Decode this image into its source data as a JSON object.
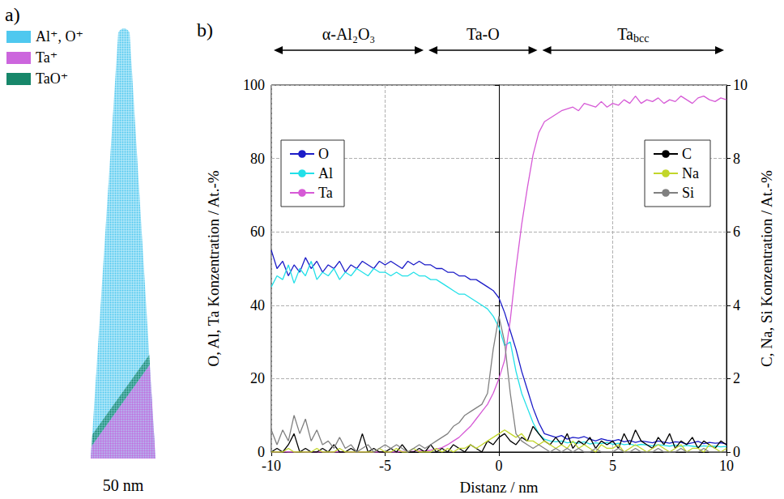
{
  "panel_a": {
    "title": "a)",
    "legend": [
      {
        "label": "Al⁺, O⁺",
        "color": "#4fc8ef"
      },
      {
        "label": "Ta⁺",
        "color": "#cc66dd"
      },
      {
        "label": "TaO⁺",
        "color": "#17876a"
      }
    ],
    "scale_bar": "50 nm"
  },
  "chart_data": {
    "type": "line",
    "title": "b)",
    "x_label": "Distanz / nm",
    "y_label": "O, Al, Ta Konzentration / At.-%",
    "y2_label": "C, Na, Si Konzentration / At.-%",
    "xlim": [
      -10,
      10
    ],
    "xticks": [
      -10,
      -5,
      0,
      5,
      10
    ],
    "ylim": [
      0,
      100
    ],
    "yticks": [
      0,
      20,
      40,
      60,
      80,
      100
    ],
    "y2lim": [
      0,
      10
    ],
    "y2ticks": [
      0,
      2,
      4,
      6,
      8,
      10
    ],
    "grid": true,
    "legend": "top",
    "annotations": [
      {
        "text": "α-Al₂O₃",
        "x": [
          -10,
          -3.2
        ]
      },
      {
        "text": "Ta-O",
        "x": [
          -3.2,
          1.8
        ]
      },
      {
        "text": "Ta",
        "subscript": "bcc",
        "x": [
          1.8,
          10
        ]
      }
    ],
    "x": [
      -10,
      -9.75,
      -9.5,
      -9.25,
      -9,
      -8.75,
      -8.5,
      -8.25,
      -8,
      -7.75,
      -7.5,
      -7.25,
      -7,
      -6.75,
      -6.5,
      -6.25,
      -6,
      -5.75,
      -5.5,
      -5.25,
      -5,
      -4.75,
      -4.5,
      -4.25,
      -4,
      -3.75,
      -3.5,
      -3.25,
      -3,
      -2.75,
      -2.5,
      -2.25,
      -2,
      -1.75,
      -1.5,
      -1.25,
      -1,
      -0.75,
      -0.5,
      -0.25,
      0,
      0.25,
      0.5,
      0.75,
      1,
      1.25,
      1.5,
      1.75,
      2,
      2.25,
      2.5,
      2.75,
      3,
      3.25,
      3.5,
      3.75,
      4,
      4.25,
      4.5,
      4.75,
      5,
      5.25,
      5.5,
      5.75,
      6,
      6.25,
      6.5,
      6.75,
      7,
      7.25,
      7.5,
      7.75,
      8,
      8.25,
      8.5,
      8.75,
      9,
      9.25,
      9.5,
      9.75,
      10
    ],
    "series": [
      {
        "name": "O",
        "color": "#1c1cc8",
        "values": [
          55,
          50,
          52,
          48,
          51,
          49,
          53,
          50,
          52,
          49,
          51,
          50,
          52,
          49,
          51,
          50,
          52,
          51,
          50,
          52,
          51,
          52,
          51,
          50,
          52,
          51,
          52,
          51,
          51,
          50,
          50,
          49,
          49,
          48,
          48,
          47,
          47,
          46,
          45,
          44,
          42,
          38,
          33,
          28,
          22,
          17,
          12,
          8,
          5,
          4.5,
          4,
          4.5,
          3.5,
          4,
          3.8,
          4.2,
          3.5,
          3,
          3.6,
          3.2,
          3,
          3.4,
          2.8,
          3.1,
          2.6,
          3,
          2.8,
          2.5,
          3,
          2.7,
          2.4,
          2.8,
          2.6,
          2.2,
          2.5,
          2.9,
          2.3,
          2.6,
          2.4,
          2.5,
          2.2
        ]
      },
      {
        "name": "Al",
        "color": "#22e0e8",
        "values": [
          45,
          48,
          47,
          51,
          46,
          50,
          48,
          52,
          47,
          49,
          48,
          50,
          47,
          49,
          48,
          50,
          49,
          48,
          50,
          49,
          49,
          48,
          49,
          48,
          48,
          49,
          48,
          48,
          47,
          47,
          46,
          45,
          44,
          43,
          43,
          42,
          41,
          40,
          39,
          37,
          34,
          29,
          30,
          22,
          16,
          12,
          8,
          5,
          3.5,
          3,
          2.8,
          3,
          2.5,
          2.7,
          2.4,
          2.8,
          2.2,
          2.5,
          2.3,
          2.6,
          2.1,
          2.4,
          2,
          2.2,
          1.8,
          2.1,
          1.9,
          1.7,
          2,
          1.8,
          1.6,
          1.9,
          1.5,
          1.8,
          1.6,
          1.4,
          1.7,
          1.5,
          1.6,
          1.4,
          1.5
        ]
      },
      {
        "name": "Ta",
        "color": "#d65ad6",
        "values": [
          0,
          0,
          0.1,
          0,
          0,
          0.1,
          0,
          0,
          0,
          0.1,
          0,
          0,
          0.1,
          0,
          0,
          0,
          0.1,
          0,
          0,
          0,
          0.1,
          0,
          0,
          0.2,
          0.1,
          0.2,
          0.3,
          0.3,
          0.5,
          0.8,
          1.2,
          2,
          3,
          4,
          5.5,
          7,
          9,
          11,
          13,
          16,
          20,
          25,
          36,
          50,
          62,
          72,
          81,
          87,
          90,
          91,
          92,
          93,
          93.5,
          94,
          93,
          95,
          94.5,
          94,
          95.5,
          94,
          95,
          94.5,
          96,
          95,
          97,
          95,
          96,
          95.5,
          96.5,
          95,
          96,
          95.5,
          97,
          96,
          95,
          96.5,
          97,
          96,
          95.5,
          96.5,
          96
        ]
      },
      {
        "name": "C",
        "color": "#000000",
        "axis": "y2",
        "values": [
          0,
          0.1,
          0,
          0.2,
          0.5,
          0,
          0.1,
          0,
          0,
          0.1,
          0,
          0.2,
          0,
          0,
          0.1,
          0,
          0.5,
          0,
          0.1,
          0,
          0,
          0.1,
          0,
          0.2,
          0,
          0,
          0.1,
          0,
          0.2,
          0,
          0.1,
          0,
          0.2,
          0.1,
          0,
          0.2,
          0.1,
          0,
          0.3,
          0.2,
          0.4,
          0.5,
          0.3,
          0.2,
          0.4,
          0.3,
          0.7,
          0.5,
          0.3,
          0.2,
          0.4,
          0.2,
          0.5,
          0.1,
          0.3,
          0.2,
          0.4,
          0.1,
          0.3,
          0.2,
          0.3,
          0.1,
          0.5,
          0.2,
          0.6,
          0.3,
          0.2,
          0.1,
          0.4,
          0.2,
          0.5,
          0.1,
          0.3,
          0.2,
          0.4,
          0.1,
          0.3,
          0.2,
          0.1,
          0.3,
          0.2
        ]
      },
      {
        "name": "Na",
        "color": "#c2d62a",
        "axis": "y2",
        "values": [
          0,
          0,
          0,
          0.1,
          0,
          0,
          0,
          0,
          0.1,
          0,
          0,
          0,
          0.1,
          0,
          0,
          0,
          0,
          0,
          0,
          0.1,
          0,
          0,
          0.1,
          0,
          0,
          0.1,
          0,
          0,
          0,
          0.1,
          0,
          0.1,
          0,
          0.1,
          0.1,
          0.2,
          0.1,
          0.2,
          0.3,
          0.4,
          0.5,
          0.6,
          0.5,
          0.4,
          0.5,
          0.3,
          0.3,
          0.2,
          0.3,
          0.2,
          0.1,
          0.2,
          0.1,
          0.3,
          0.1,
          0.2,
          0.1,
          0,
          0.2,
          0.1,
          0.1,
          0.2,
          0,
          0.1,
          0.2,
          0.1,
          0,
          0.1,
          0.2,
          0.1,
          0,
          0.1,
          0.2,
          0,
          0.1,
          0.1,
          0,
          0.2,
          0.1,
          0,
          0.1
        ]
      },
      {
        "name": "Si",
        "color": "#808080",
        "axis": "y2",
        "values": [
          0.6,
          0.2,
          0.6,
          0.3,
          1.0,
          0.5,
          0.9,
          0.3,
          0.6,
          0.2,
          0.3,
          0.1,
          0.4,
          0.1,
          0.2,
          0,
          0.1,
          0.2,
          0,
          0.1,
          0.2,
          0.1,
          0.2,
          0.1,
          0,
          0.1,
          0.2,
          0.1,
          0.2,
          0.3,
          0.4,
          0.5,
          0.7,
          0.8,
          1.0,
          1.1,
          1.2,
          1.3,
          1.6,
          2.8,
          3.7,
          3.0,
          1.6,
          0.5,
          0.3,
          0.2,
          0.1,
          0.2,
          0.1,
          0,
          0.1,
          0,
          0.1,
          0,
          0.1,
          0,
          0,
          0.1,
          0,
          0,
          0,
          0.1,
          0,
          0,
          0.1,
          0,
          0,
          0,
          0.1,
          0,
          0,
          0,
          0.1,
          0,
          0,
          0,
          0.1,
          0,
          0,
          0,
          0
        ]
      }
    ]
  }
}
